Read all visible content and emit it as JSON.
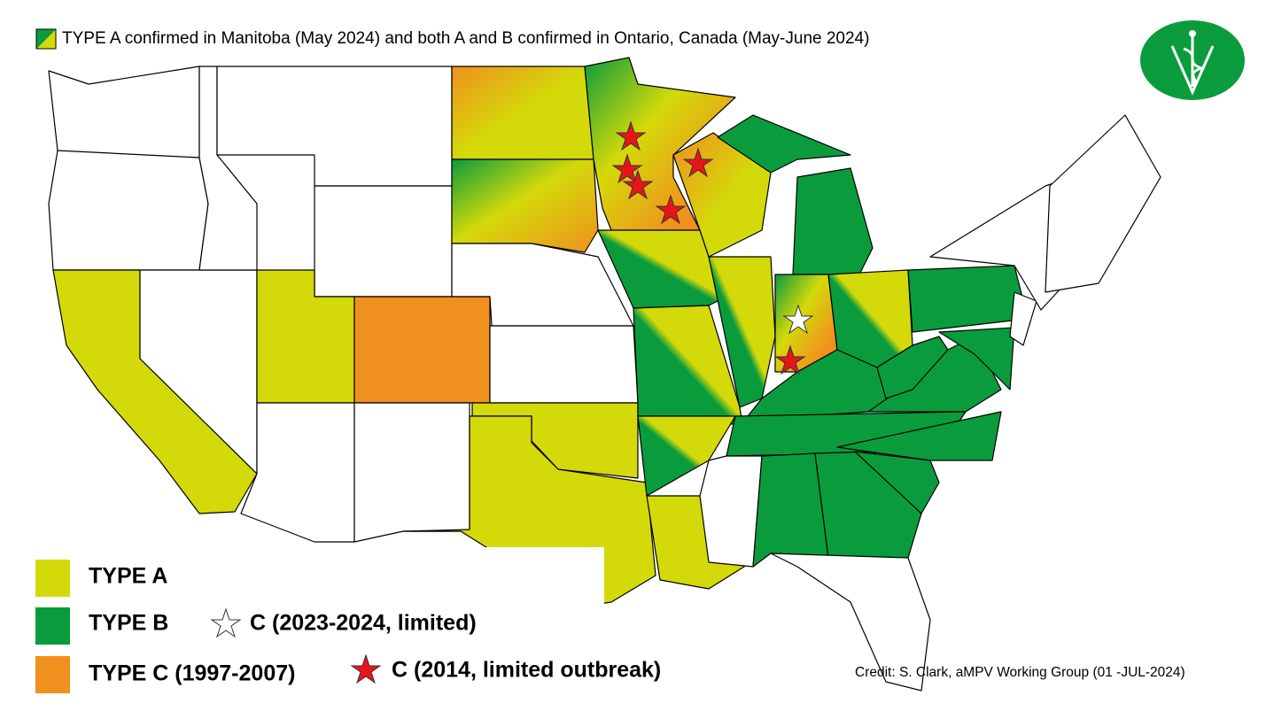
{
  "header": {
    "title": "TYPE A confirmed in Manitoba (May 2024) and  both A and B confirmed in Ontario, Canada (May-June 2024)"
  },
  "legend": {
    "type_a": "TYPE A",
    "type_b": "TYPE B",
    "type_c": "TYPE C (1997-2007)",
    "c_white_star": "C (2023-2024, limited)",
    "c_red_star": "C (2014, limited outbreak)"
  },
  "credit": "Credit: S. Clark, aMPV Working Group (01 -JUL-2024)"
}
